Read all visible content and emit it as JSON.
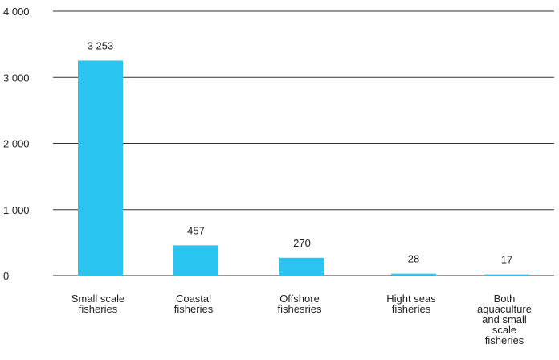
{
  "chart_data": {
    "type": "bar",
    "title": "",
    "xlabel": "",
    "ylabel": "",
    "ylim": [
      0,
      4000
    ],
    "yticks": [
      0,
      1000,
      2000,
      3000,
      4000
    ],
    "ytick_labels": [
      "0",
      "1 000",
      "2 000",
      "3 000",
      "4 000"
    ],
    "grid": true,
    "legend": "none",
    "categories": [
      [
        "Small scale",
        "fisheries"
      ],
      [
        "Coastal",
        "fisheries"
      ],
      [
        "Offshore",
        "fishesries"
      ],
      [
        "Hight seas",
        "fisheries"
      ],
      [
        "Both",
        "aquaculture",
        "and small",
        "scale",
        "fisheries"
      ]
    ],
    "values": [
      3253,
      457,
      270,
      28,
      17
    ],
    "value_labels": [
      "3 253",
      "457",
      "270",
      "28",
      "17"
    ],
    "bar_color": "#2ac4f0"
  }
}
